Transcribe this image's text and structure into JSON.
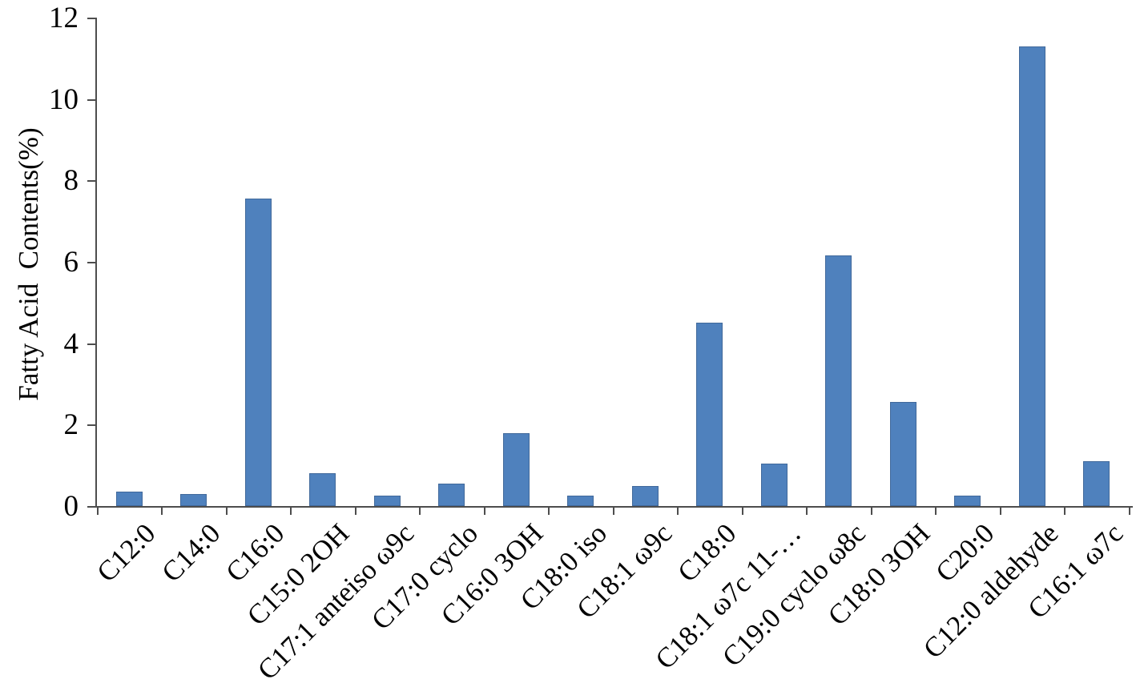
{
  "chart_data": {
    "type": "bar",
    "title": "",
    "xlabel": "",
    "ylabel": "Fatty Acid  Contents(%)",
    "ylim": [
      0,
      12
    ],
    "yticks": [
      0,
      2,
      4,
      6,
      8,
      10,
      12
    ],
    "grid": false,
    "legend": "none",
    "bar_color": "#4F81BD",
    "axis_color": "#4d4d4d",
    "categories": [
      "C12:0",
      "C14:0",
      "C16:0",
      "C15:0 2OH",
      "C17:1 anteiso ω9c",
      "C17:0 cyclo",
      "C16:0 3OH",
      "C18:0 iso",
      "C18:1 ω9c",
      "C18:0",
      "C18:1 ω7c 11-…",
      "C19:0 cyclo ω8c",
      "C18:0 3OH",
      "C20:0",
      "C12:0 aldehyde",
      "C16:1 ω7c"
    ],
    "values": [
      0.35,
      0.3,
      7.55,
      0.8,
      0.25,
      0.55,
      1.8,
      0.25,
      0.5,
      4.5,
      1.05,
      6.15,
      2.55,
      0.25,
      11.3,
      1.1
    ]
  }
}
